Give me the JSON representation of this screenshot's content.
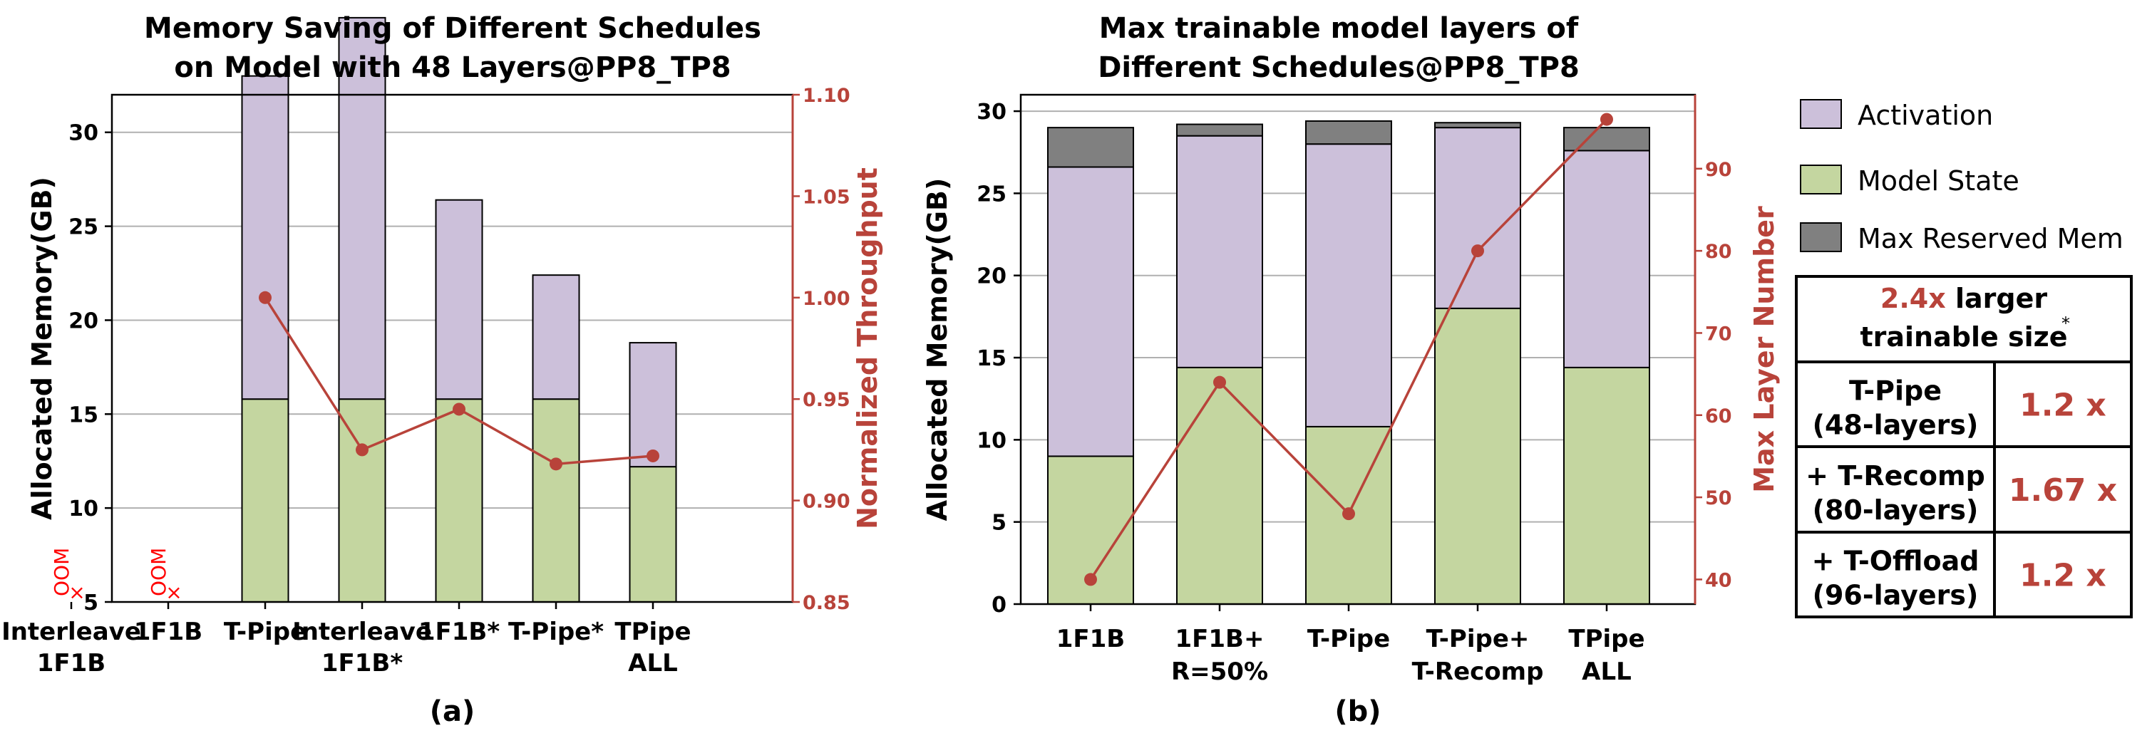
{
  "colors": {
    "activation": "#ccc0da",
    "model_state": "#c4d6a0",
    "max_reserved": "#808080",
    "throughput": "#b8433a",
    "oom": "#ff0000"
  },
  "chart_data": [
    {
      "id": "a",
      "type": "bar",
      "stacked": true,
      "title_lines": [
        "Memory Saving of Different Schedules",
        "on Model with 48 Layers@PP8_TP8"
      ],
      "subtitle": "(a)",
      "ylabel": "Allocated Memory(GB)",
      "y2label": "Normalized Throughput",
      "ylim": [
        5,
        32
      ],
      "yticks": [
        5,
        10,
        15,
        20,
        25,
        30
      ],
      "y2lim": [
        0.85,
        1.1
      ],
      "y2ticks": [
        "0.85",
        "0.90",
        "0.95",
        "1.00",
        "1.05",
        "1.10"
      ],
      "grid": true,
      "categories": [
        [
          "Interleave",
          "1F1B"
        ],
        [
          "1F1B"
        ],
        [
          "T-Pipe"
        ],
        [
          "Interleave",
          "1F1B*"
        ],
        [
          "1F1B*"
        ],
        [
          "T-Pipe*"
        ],
        [
          "TPipe",
          "ALL"
        ]
      ],
      "oom_label": "OOM",
      "oom": [
        true,
        true,
        false,
        false,
        false,
        false,
        false
      ],
      "series": [
        {
          "key": "model_state",
          "values": [
            null,
            null,
            10.8,
            10.8,
            10.8,
            10.8,
            7.2
          ]
        },
        {
          "key": "activation",
          "values": [
            null,
            null,
            17.2,
            20.3,
            10.6,
            6.6,
            6.6
          ]
        }
      ],
      "line": {
        "axis": "right",
        "values": [
          null,
          null,
          1.0,
          0.925,
          0.945,
          0.918,
          0.922
        ]
      }
    },
    {
      "id": "b",
      "type": "bar",
      "stacked": true,
      "title_lines": [
        "Max trainable model layers of",
        "Different Schedules@PP8_TP8"
      ],
      "subtitle": "(b)",
      "ylabel": "Allocated Memory(GB)",
      "y2label": "Max Layer Number",
      "ylim": [
        0,
        31
      ],
      "yticks": [
        0,
        5,
        10,
        15,
        20,
        25,
        30
      ],
      "y2lim": [
        37,
        99
      ],
      "y2ticks": [
        40,
        50,
        60,
        70,
        80,
        90
      ],
      "grid": true,
      "categories": [
        [
          "1F1B"
        ],
        [
          "1F1B+",
          "R=50%"
        ],
        [
          "T-Pipe"
        ],
        [
          "T-Pipe+",
          "T-Recomp"
        ],
        [
          "TPipe",
          "ALL"
        ]
      ],
      "series": [
        {
          "key": "model_state",
          "name": "Model State",
          "values": [
            9.0,
            14.4,
            10.8,
            18.0,
            14.4
          ]
        },
        {
          "key": "activation",
          "name": "Activation",
          "values": [
            17.6,
            14.1,
            17.2,
            11.0,
            13.2
          ]
        },
        {
          "key": "max_reserved",
          "name": "Max Reserved Mem",
          "values": [
            2.4,
            0.7,
            1.4,
            0.3,
            1.4
          ]
        }
      ],
      "line": {
        "axis": "right",
        "values": [
          40,
          64,
          48,
          80,
          96
        ]
      }
    }
  ],
  "legend": {
    "placement": "right",
    "items": [
      {
        "key": "activation",
        "label": "Activation"
      },
      {
        "key": "model_state",
        "label": "Model State"
      },
      {
        "key": "max_reserved",
        "label": "Max Reserved Mem"
      }
    ]
  },
  "summary_table": {
    "header_highlight": "2.4x",
    "header_rest": " larger",
    "header_line2": "trainable size",
    "header_mark": "*",
    "rows": [
      {
        "line1": "T-Pipe",
        "line2": "(48-layers)",
        "value": "1.2 x"
      },
      {
        "line1": "+ T-Recomp",
        "line2": "(80-layers)",
        "value": "1.67 x"
      },
      {
        "line1": "+ T-Offload",
        "line2": "(96-layers)",
        "value": "1.2 x"
      }
    ]
  }
}
